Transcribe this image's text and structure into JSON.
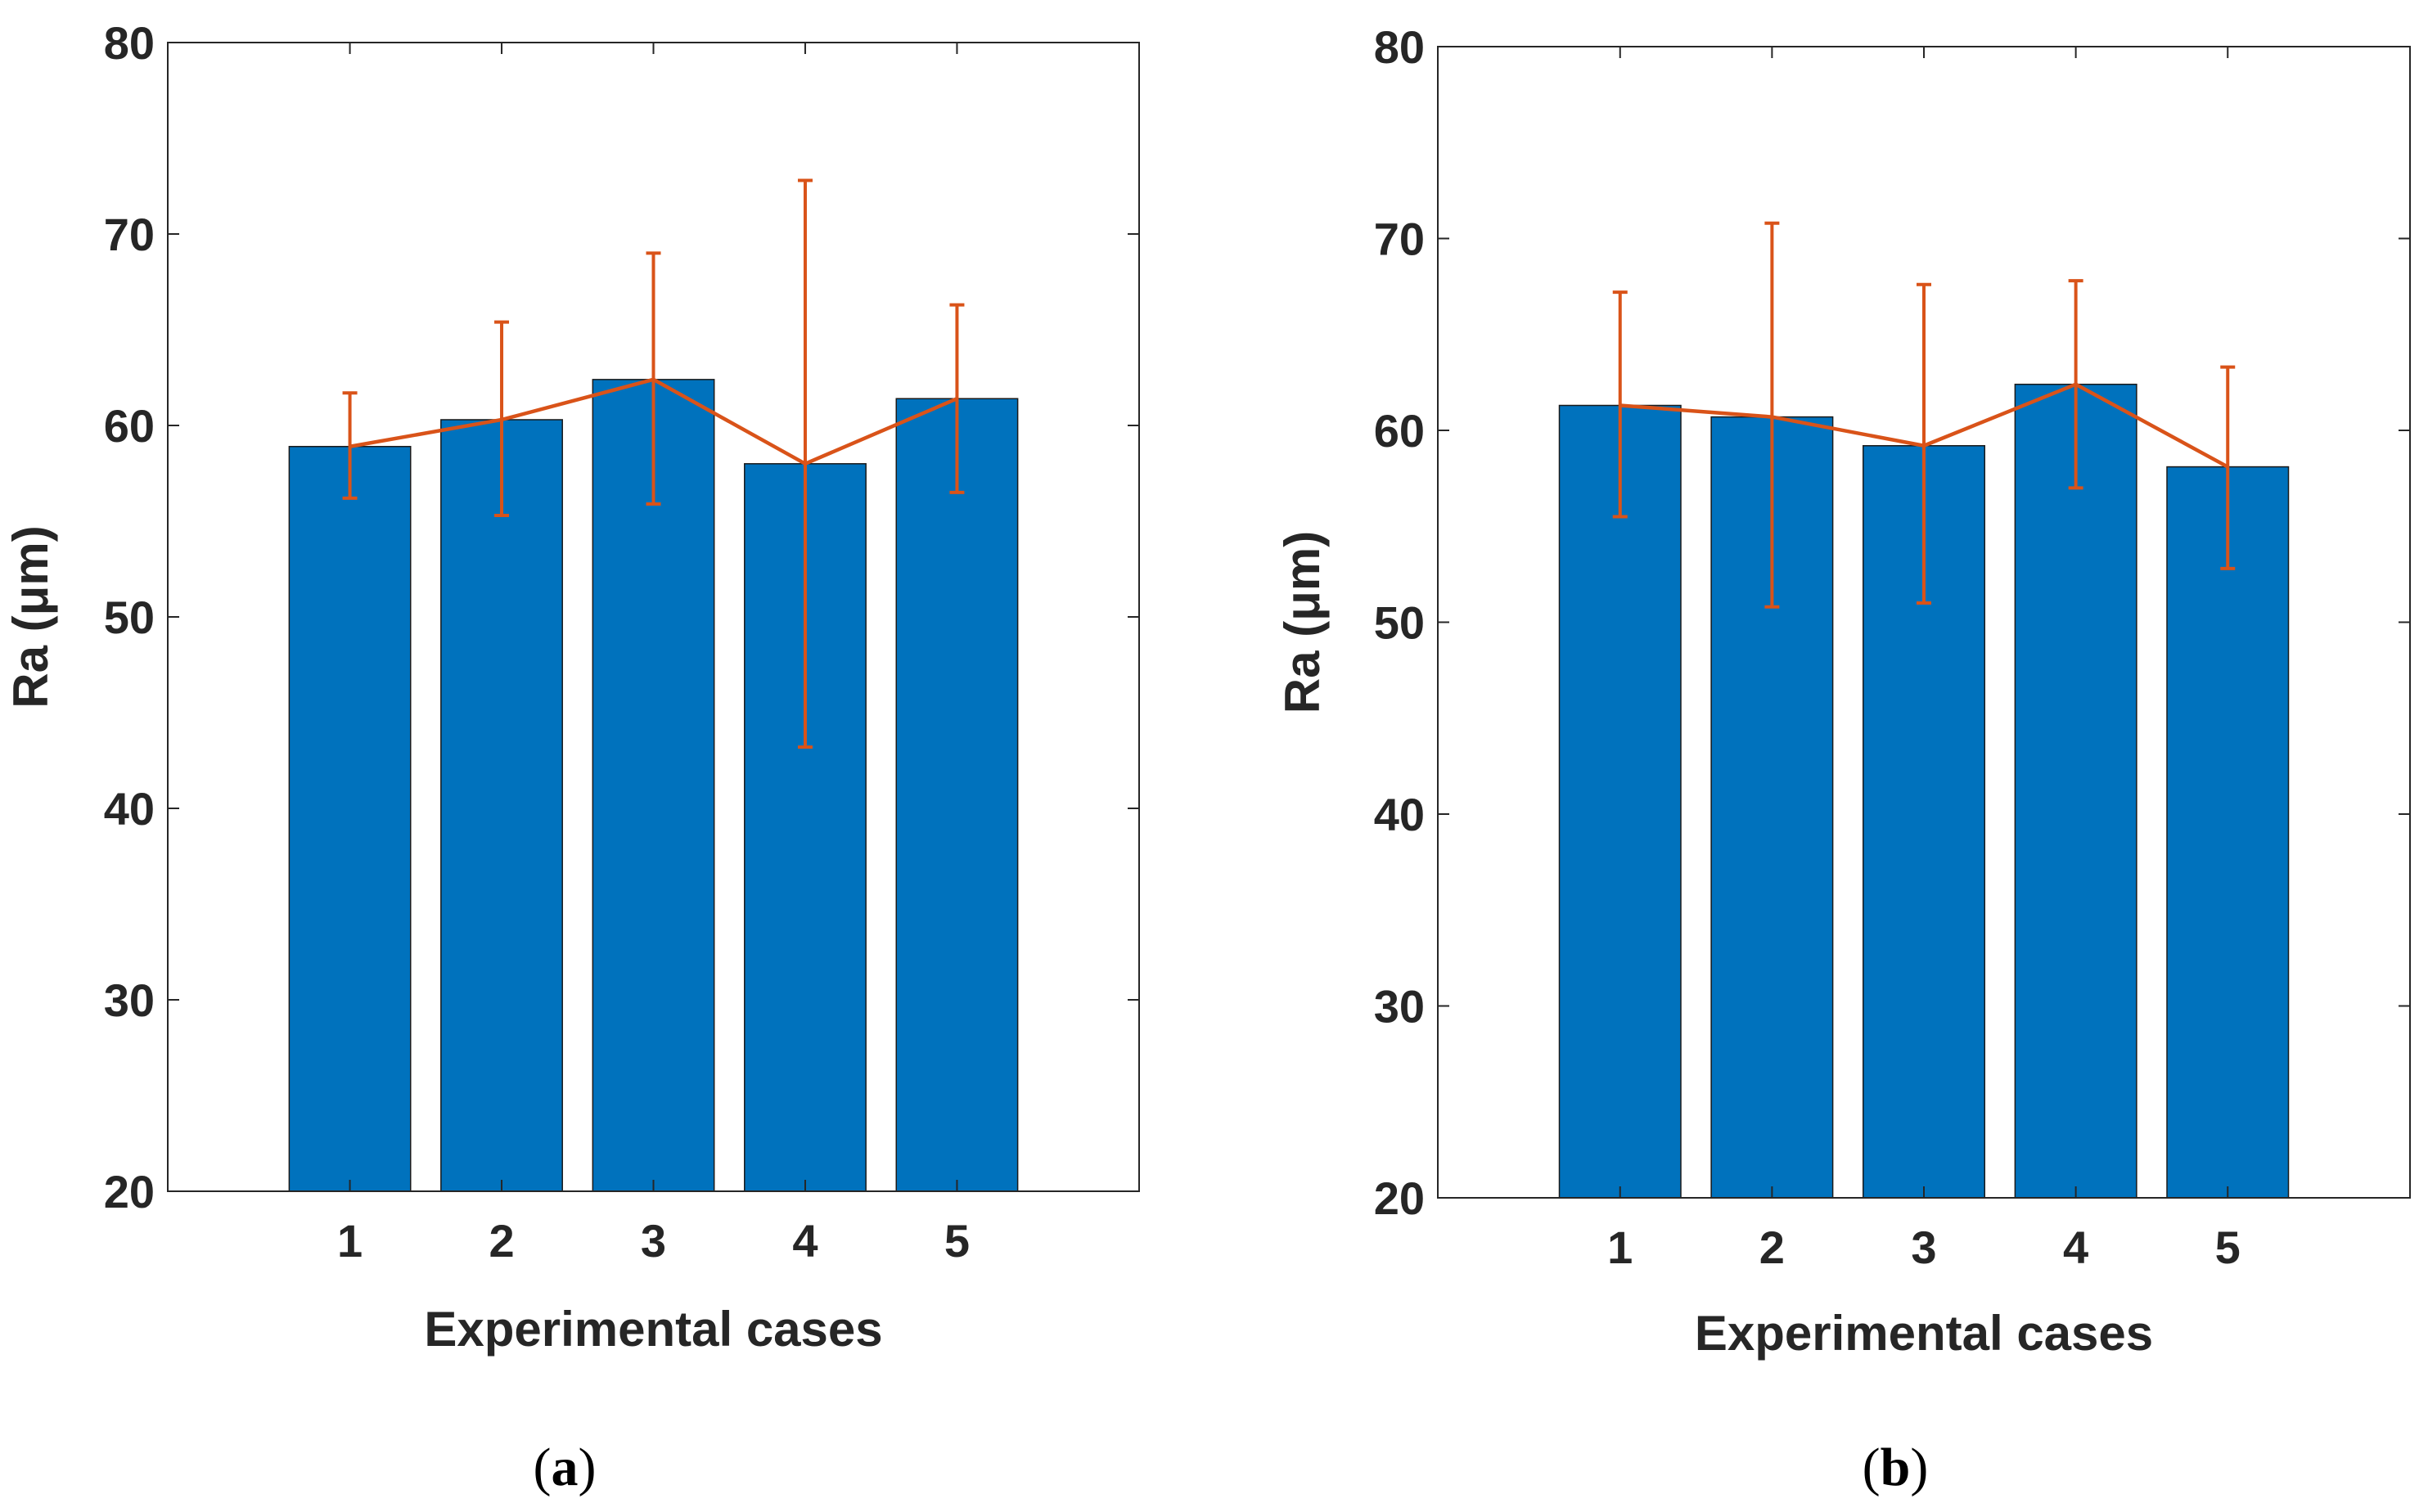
{
  "colors": {
    "bar": "#0072BD",
    "line": "#D95319",
    "axis": "#262626"
  },
  "chart_data": [
    {
      "type": "bar",
      "panel": "(a)",
      "panel_letter": "a",
      "categories": [
        "1",
        "2",
        "3",
        "4",
        "5"
      ],
      "values": [
        58.9,
        60.3,
        62.4,
        58.0,
        61.4
      ],
      "error_low": [
        56.2,
        55.3,
        55.9,
        43.2,
        56.5
      ],
      "error_high": [
        61.7,
        65.4,
        69.0,
        72.8,
        66.3
      ],
      "line_overlay": "mean values connected by line with error bars",
      "xlabel": "Experimental cases",
      "ylabel": "Ra (μm)",
      "xlim": [
        -0.2,
        6.2
      ],
      "ylim": [
        20,
        80
      ],
      "yticks": [
        20,
        30,
        40,
        50,
        60,
        70,
        80
      ],
      "grid": false
    },
    {
      "type": "bar",
      "panel": "(b)",
      "panel_letter": "b",
      "categories": [
        "1",
        "2",
        "3",
        "4",
        "5"
      ],
      "values": [
        61.3,
        60.7,
        59.2,
        62.4,
        58.1
      ],
      "error_low": [
        55.5,
        50.8,
        51.0,
        57.0,
        52.8
      ],
      "error_high": [
        67.2,
        70.8,
        67.6,
        67.8,
        63.3
      ],
      "line_overlay": "mean values connected by line with error bars",
      "xlabel": "Experimental cases",
      "ylabel": "Ra (μm)",
      "xlim": [
        -0.2,
        6.2
      ],
      "ylim": [
        20,
        80
      ],
      "yticks": [
        20,
        30,
        40,
        50,
        60,
        70,
        80
      ],
      "grid": false
    }
  ]
}
